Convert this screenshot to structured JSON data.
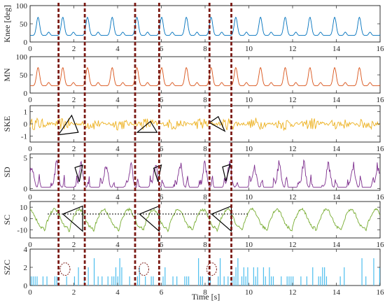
{
  "colors": {
    "knee": "#0072BD",
    "mn": "#D95319",
    "ske": "#EDB120",
    "sd": "#7E2F8E",
    "sc": "#77AC30",
    "szc": "#4DBEEE",
    "marker": "#7B1A14",
    "axis": "#262626",
    "frame": "#000000",
    "annotation": "#000000"
  },
  "chart_data": {
    "type": "line",
    "xlabel": "Time [s]",
    "xlim": [
      0,
      16
    ],
    "xticks": [
      0,
      2,
      4,
      6,
      8,
      10,
      12,
      14,
      16
    ],
    "event_lines_x": [
      1.3,
      2.5,
      4.8,
      5.9,
      8.2,
      9.2
    ],
    "gait_cycle_s": 1.13,
    "panels": [
      {
        "name": "Knee",
        "ylabel": "Knee [deg]",
        "ylim": [
          0,
          100
        ],
        "yticks": [
          0,
          50,
          100
        ],
        "ytick_labels": [
          "0",
          "50",
          "100"
        ],
        "baseline": 20,
        "peak": 68,
        "trough": 18,
        "shape": "gait"
      },
      {
        "name": "MN",
        "ylabel": "MN",
        "ylim": [
          0,
          100
        ],
        "yticks": [
          0,
          50,
          100
        ],
        "ytick_labels": [
          "0",
          "50",
          "100"
        ],
        "baseline": 22,
        "peak": 70,
        "trough": 20,
        "shape": "gait"
      },
      {
        "name": "SKE",
        "ylabel": "SKE",
        "ylim": [
          -1.5,
          1.5
        ],
        "yticks": [
          -1,
          0,
          1
        ],
        "ytick_labels": [
          "-1",
          "0",
          "1"
        ],
        "shape": "noise",
        "amplitude": 0.55,
        "triangles": [
          {
            "x": [
              1.3,
              2.2,
              1.9
            ],
            "y": [
              -0.9,
              -0.7,
              0.7
            ]
          },
          {
            "x": [
              4.9,
              5.8,
              5.5
            ],
            "y": [
              -0.7,
              -0.7,
              0.2
            ]
          },
          {
            "x": [
              8.2,
              8.9,
              8.6
            ],
            "y": [
              0.1,
              -0.6,
              0.6
            ]
          }
        ]
      },
      {
        "name": "SD",
        "ylabel": "SD",
        "ylim": [
          -0.3,
          5.6
        ],
        "yticks": [
          0,
          5
        ],
        "ytick_labels": [
          "0",
          "5"
        ],
        "shape": "spiky",
        "peak": 4.4,
        "triangles": [
          {
            "x": [
              2.05,
              2.4,
              2.25
            ],
            "y": [
              3.4,
              3.8,
              1.1
            ]
          },
          {
            "x": [
              5.65,
              6.0,
              5.85
            ],
            "y": [
              3.3,
              3.8,
              1.1
            ]
          },
          {
            "x": [
              8.8,
              9.15,
              8.95
            ],
            "y": [
              3.5,
              3.9,
              1.2
            ]
          }
        ]
      },
      {
        "name": "SC",
        "ylabel": "SC",
        "ylim": [
          -17,
          15
        ],
        "yticks": [
          -10,
          0,
          10
        ],
        "ytick_labels": [
          "-10",
          "0",
          "10"
        ],
        "shape": "oscillation",
        "amplitude": 8,
        "reference_line": {
          "y": 4,
          "x": [
            0.8,
            10.0
          ]
        },
        "triangles": [
          {
            "x": [
              1.5,
              2.4,
              2.4
            ],
            "y": [
              4,
              11,
              -11
            ]
          },
          {
            "x": [
              5.0,
              5.9,
              5.9
            ],
            "y": [
              4,
              11,
              -11
            ]
          },
          {
            "x": [
              8.3,
              9.2,
              9.2
            ],
            "y": [
              4,
              11,
              -11
            ]
          }
        ]
      },
      {
        "name": "SZC",
        "ylabel": "SZC",
        "ylim": [
          0,
          4
        ],
        "yticks": [
          0,
          2,
          4
        ],
        "ytick_labels": [
          "0",
          "2",
          "4"
        ],
        "shape": "stems",
        "circles": [
          {
            "x": 1.6,
            "y": 1.8
          },
          {
            "x": 5.2,
            "y": 1.8
          },
          {
            "x": 8.3,
            "y": 1.8
          }
        ]
      }
    ]
  }
}
